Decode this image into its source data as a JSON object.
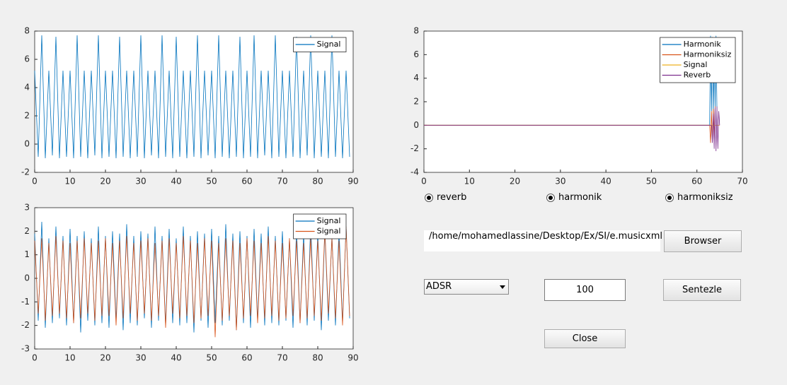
{
  "chart_data": [
    {
      "type": "line",
      "xlim": [
        0,
        90
      ],
      "ylim": [
        -2,
        8
      ],
      "xticks": [
        0,
        10,
        20,
        30,
        40,
        50,
        60,
        70,
        80,
        90
      ],
      "yticks": [
        -2,
        0,
        2,
        4,
        6,
        8
      ],
      "legend": "upper right",
      "x": [
        0,
        1,
        2,
        3,
        4,
        5,
        6,
        7,
        8,
        9,
        10,
        11,
        12,
        13,
        14,
        15,
        16,
        17,
        18,
        19,
        20,
        21,
        22,
        23,
        24,
        25,
        26,
        27,
        28,
        29,
        30,
        31,
        32,
        33,
        34,
        35,
        36,
        37,
        38,
        39,
        40,
        41,
        42,
        43,
        44,
        45,
        46,
        47,
        48,
        49,
        50,
        51,
        52,
        53,
        54,
        55,
        56,
        57,
        58,
        59,
        60,
        61,
        62,
        63,
        64,
        65,
        66,
        67,
        68,
        69,
        70,
        71,
        72,
        73,
        74,
        75,
        76,
        77,
        78,
        79,
        80,
        81,
        82,
        83,
        84,
        85,
        86,
        87,
        88,
        89
      ],
      "series": [
        {
          "name": "Signal",
          "color": "#0072bd",
          "values": [
            5.2,
            -0.9,
            7.7,
            -1.0,
            5.2,
            -0.8,
            7.6,
            -1.0,
            5.2,
            -0.9,
            5.2,
            -1.0,
            7.7,
            -0.9,
            5.2,
            -1.0,
            5.2,
            -0.8,
            7.7,
            -1.0,
            5.2,
            -0.9,
            5.2,
            -1.0,
            7.6,
            -0.9,
            5.2,
            -1.0,
            5.2,
            -0.9,
            7.7,
            -1.0,
            5.2,
            -0.8,
            5.2,
            -1.0,
            7.7,
            -0.9,
            5.2,
            -1.0,
            7.6,
            -0.9,
            5.2,
            -1.0,
            5.2,
            -0.9,
            7.7,
            -1.0,
            5.2,
            -0.8,
            5.2,
            -1.0,
            7.7,
            -0.9,
            5.2,
            -1.0,
            5.2,
            -0.9,
            7.6,
            -1.0,
            5.2,
            -0.9,
            7.7,
            -1.0,
            5.2,
            -0.8,
            5.2,
            -1.0,
            7.7,
            -0.9,
            5.2,
            -1.0,
            5.2,
            -0.9,
            7.6,
            -1.0,
            5.2,
            -0.8,
            7.7,
            -1.0,
            5.2,
            -0.9,
            5.2,
            -1.0,
            7.7,
            -0.9,
            5.2,
            -1.0,
            5.2,
            -0.9
          ]
        }
      ]
    },
    {
      "type": "line",
      "xlim": [
        0,
        90
      ],
      "ylim": [
        -3,
        3
      ],
      "xticks": [
        0,
        10,
        20,
        30,
        40,
        50,
        60,
        70,
        80,
        90
      ],
      "yticks": [
        -3,
        -2,
        -1,
        0,
        1,
        2,
        3
      ],
      "legend": "upper right",
      "x": [
        0,
        1,
        2,
        3,
        4,
        5,
        6,
        7,
        8,
        9,
        10,
        11,
        12,
        13,
        14,
        15,
        16,
        17,
        18,
        19,
        20,
        21,
        22,
        23,
        24,
        25,
        26,
        27,
        28,
        29,
        30,
        31,
        32,
        33,
        34,
        35,
        36,
        37,
        38,
        39,
        40,
        41,
        42,
        43,
        44,
        45,
        46,
        47,
        48,
        49,
        50,
        51,
        52,
        53,
        54,
        55,
        56,
        57,
        58,
        59,
        60,
        61,
        62,
        63,
        64,
        65,
        66,
        67,
        68,
        69,
        70,
        71,
        72,
        73,
        74,
        75,
        76,
        77,
        78,
        79,
        80,
        81,
        82,
        83,
        84,
        85,
        86,
        87,
        88,
        89
      ],
      "series": [
        {
          "name": "Signal",
          "color": "#0072bd",
          "values": [
            1.9,
            -1.8,
            2.4,
            -2.1,
            1.7,
            -1.9,
            2.2,
            -1.7,
            1.8,
            -2.0,
            2.1,
            -1.9,
            1.8,
            -2.3,
            2.0,
            -1.8,
            1.7,
            -2.0,
            2.2,
            -1.9,
            1.8,
            -2.1,
            2.0,
            -1.8,
            1.9,
            -2.2,
            2.3,
            -1.9,
            1.8,
            -2.0,
            2.0,
            -1.7,
            1.9,
            -2.1,
            2.2,
            -1.8,
            1.8,
            -2.0,
            2.1,
            -1.9,
            1.7,
            -2.0,
            2.2,
            -1.9,
            1.8,
            -2.3,
            2.0,
            -1.8,
            1.9,
            -2.1,
            2.1,
            -1.9,
            1.8,
            -2.0,
            2.3,
            -1.8,
            1.9,
            -2.2,
            2.0,
            -1.9,
            1.8,
            -2.1,
            2.1,
            -1.8,
            1.9,
            -2.0,
            2.2,
            -1.9,
            1.8,
            -2.0,
            2.0,
            -1.8,
            1.7,
            -2.1,
            2.1,
            -1.9,
            1.9,
            -2.0,
            2.3,
            -1.8,
            1.9,
            -2.2,
            2.0,
            -1.8,
            1.8,
            -2.0,
            2.1,
            -1.9,
            2.2,
            -1.7
          ]
        },
        {
          "name": "Signal",
          "color": "#d95319",
          "values": [
            1.6,
            -1.5,
            1.7,
            -1.8,
            1.5,
            -1.6,
            1.8,
            -1.5,
            1.6,
            -1.7,
            1.5,
            -1.9,
            1.6,
            -1.7,
            1.7,
            -1.5,
            1.5,
            -1.8,
            1.6,
            -1.6,
            1.7,
            -1.6,
            1.5,
            -2.0,
            1.6,
            -1.7,
            1.8,
            -1.5,
            1.5,
            -1.8,
            1.6,
            -1.5,
            1.7,
            -1.8,
            1.5,
            -1.6,
            1.6,
            -2.1,
            1.7,
            -1.5,
            1.5,
            -1.7,
            1.8,
            -1.6,
            1.6,
            -1.9,
            1.5,
            -1.7,
            1.7,
            -1.6,
            1.6,
            -2.5,
            1.5,
            -1.8,
            1.7,
            -1.6,
            1.6,
            -2.2,
            1.5,
            -1.7,
            1.7,
            -1.6,
            1.6,
            -1.9,
            1.5,
            -1.7,
            1.8,
            -1.6,
            1.6,
            -1.8,
            1.5,
            -1.7,
            1.7,
            -1.6,
            1.6,
            -1.9,
            1.5,
            -1.7,
            1.7,
            -1.6,
            1.6,
            -1.8,
            2.1,
            -1.5,
            1.7,
            -1.7,
            1.6,
            -2.0,
            2.2,
            -1.6
          ]
        }
      ]
    },
    {
      "type": "line",
      "xlim": [
        0,
        70
      ],
      "ylim": [
        -4,
        8
      ],
      "xticks": [
        0,
        10,
        20,
        30,
        40,
        50,
        60,
        70
      ],
      "yticks": [
        -4,
        -2,
        0,
        2,
        4,
        6,
        8
      ],
      "legend": "upper right",
      "x": [
        0,
        62.8,
        63,
        63.2,
        63.4,
        63.6,
        63.8,
        64,
        64.2,
        64.4,
        64.6,
        64.8,
        65
      ],
      "series": [
        {
          "name": "Harmonik",
          "color": "#0072bd",
          "values": [
            0,
            0,
            7.6,
            1.2,
            7.5,
            1.0,
            7.4,
            1.5,
            7.6,
            1.3,
            null,
            null,
            null
          ]
        },
        {
          "name": "Harmoniksiz",
          "color": "#d95319",
          "values": [
            0,
            0,
            -1.5,
            1.2,
            -1.3,
            1.4,
            -1.0,
            1.6,
            null,
            null,
            null,
            null,
            null
          ]
        },
        {
          "name": "Signal",
          "color": "#edb120",
          "values": [
            0,
            0,
            0,
            0,
            0,
            0,
            0,
            0,
            0,
            0,
            0,
            0,
            0
          ]
        },
        {
          "name": "Reverb",
          "color": "#7e2f8e",
          "values": [
            0,
            0,
            0,
            0,
            -1.5,
            1.0,
            -2.0,
            1.5,
            -2.2,
            1.6,
            -2.0,
            1.2,
            0
          ]
        }
      ]
    }
  ],
  "controls": {
    "radios": [
      {
        "label": "reverb",
        "selected": true
      },
      {
        "label": "harmonik",
        "selected": true
      },
      {
        "label": "harmoniksiz",
        "selected": true
      }
    ],
    "path_field": "/home/mohamedlassine/Desktop/Ex/SI/e.musicxml",
    "browse_button": "Browser",
    "dropdown": "ADSR",
    "number_field": 100,
    "synth_button": "Sentezle",
    "close_button": "Close"
  }
}
